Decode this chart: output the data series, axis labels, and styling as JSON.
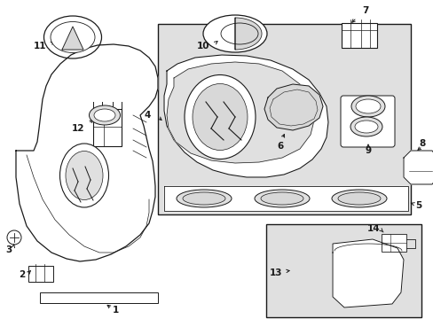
{
  "bg_color": "#ffffff",
  "line_color": "#1a1a1a",
  "shade_color": "#d8d8d8",
  "box_shade": "#e0e0e0",
  "figsize": [
    4.89,
    3.6
  ],
  "dpi": 100,
  "xlim": [
    0,
    489
  ],
  "ylim": [
    0,
    360
  ]
}
